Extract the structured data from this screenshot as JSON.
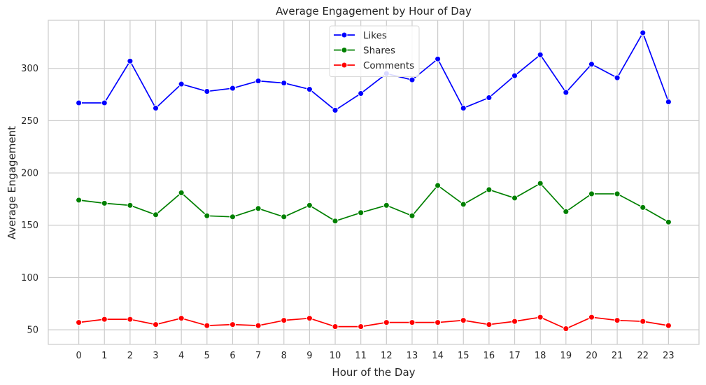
{
  "chart_data": {
    "type": "line",
    "title": "Average Engagement by Hour of Day",
    "xlabel": "Hour of the Day",
    "ylabel": "Average Engagement",
    "x": [
      0,
      1,
      2,
      3,
      4,
      5,
      6,
      7,
      8,
      9,
      10,
      11,
      12,
      13,
      14,
      15,
      16,
      17,
      18,
      19,
      20,
      21,
      22,
      23
    ],
    "ylim": [
      36,
      346
    ],
    "yticks": [
      50,
      100,
      150,
      200,
      250,
      300
    ],
    "grid": true,
    "legend_position": "top-center",
    "series": [
      {
        "name": "Likes",
        "color": "#0000ff",
        "values": [
          267,
          267,
          307,
          262,
          285,
          278,
          281,
          288,
          286,
          280,
          260,
          276,
          295,
          289,
          309,
          262,
          272,
          293,
          313,
          277,
          304,
          291,
          334,
          268
        ]
      },
      {
        "name": "Shares",
        "color": "#008000",
        "values": [
          174,
          171,
          169,
          160,
          181,
          159,
          158,
          166,
          158,
          169,
          154,
          162,
          169,
          159,
          188,
          170,
          184,
          176,
          190,
          163,
          180,
          180,
          167,
          153
        ]
      },
      {
        "name": "Comments",
        "color": "#ff0000",
        "values": [
          57,
          60,
          60,
          55,
          61,
          54,
          55,
          54,
          59,
          61,
          53,
          53,
          57,
          57,
          57,
          59,
          55,
          58,
          62,
          51,
          62,
          59,
          58,
          54
        ]
      }
    ]
  }
}
